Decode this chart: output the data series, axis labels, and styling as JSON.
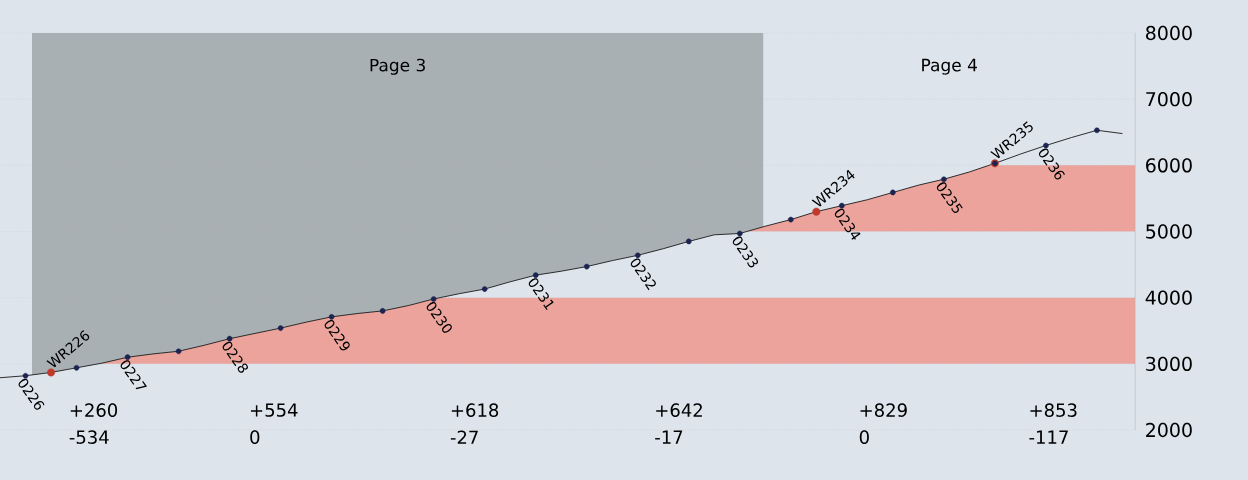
{
  "chart_data": {
    "type": "line",
    "categories": [
      null,
      "0226",
      null,
      null,
      null,
      "0227",
      null,
      null,
      null,
      "0228",
      null,
      null,
      null,
      "0229",
      null,
      null,
      null,
      "0230",
      null,
      null,
      null,
      "0231",
      null,
      null,
      null,
      "0232",
      null,
      null,
      null,
      "0233",
      null,
      null,
      null,
      "0234",
      null,
      null,
      null,
      "0235",
      null,
      null,
      null,
      "0236",
      null,
      null,
      null
    ],
    "ylim": [
      2000,
      8000
    ],
    "yticks": [
      2000,
      3000,
      4000,
      5000,
      6000,
      7000,
      8000
    ],
    "grid": "y",
    "tick_labels": "y",
    "marker": "none",
    "series": [
      {
        "color": "#1a1a1a",
        "values": [
          2790,
          2820,
          2870,
          2940,
          3010,
          3100,
          3150,
          3190,
          3280,
          3380,
          3460,
          3540,
          3630,
          3710,
          3760,
          3800,
          3880,
          3980,
          4060,
          4130,
          4240,
          4340,
          4400,
          4470,
          4560,
          4640,
          4740,
          4850,
          4950,
          4970,
          5080,
          5180,
          5300,
          5390,
          5480,
          5590,
          5700,
          5790,
          5900,
          6030,
          6170,
          6300,
          6420,
          6530,
          6480
        ]
      },
      {
        "type": "scatter",
        "marker": "circle",
        "color": "#c0392b",
        "values": [
          null,
          null,
          2870,
          null,
          null,
          null,
          null,
          null,
          null,
          null,
          null,
          null,
          null,
          null,
          null,
          null,
          null,
          null,
          null,
          null,
          null,
          null,
          null,
          null,
          null,
          null,
          null,
          null,
          null,
          null,
          null,
          null,
          5300,
          null,
          null,
          null,
          null,
          null,
          null,
          6030,
          null,
          null,
          null,
          null,
          null
        ]
      },
      {
        "type": "scatter",
        "marker": "circle",
        "color": "#1c2450",
        "values": [
          null,
          2820,
          null,
          2940,
          null,
          3100,
          null,
          3190,
          null,
          3380,
          null,
          3540,
          null,
          3710,
          null,
          3800,
          null,
          3980,
          null,
          4130,
          null,
          4340,
          null,
          4470,
          null,
          4640,
          null,
          4850,
          null,
          4970,
          null,
          5180,
          null,
          5390,
          null,
          5590,
          null,
          5790,
          null,
          6030,
          null,
          6300,
          null,
          6530,
          null
        ]
      }
    ],
    "bands": [
      {
        "axis": "y",
        "from": 3000,
        "to": 4000,
        "color": "#eba39b"
      },
      {
        "axis": "y",
        "from": 5000,
        "to": 6000,
        "color": "#eba39b"
      }
    ],
    "annotations": [
      {
        "text": "WR226",
        "y": 2870
      },
      {
        "text": "WR234",
        "y": 5300
      },
      {
        "text": "WR235",
        "y": 6030
      },
      "Page 3",
      "Page 4",
      "+260",
      "-534",
      "+554",
      "0",
      "+618",
      "-27",
      "+642",
      "-17",
      "+829",
      "0",
      "+853",
      "-117"
    ]
  }
}
